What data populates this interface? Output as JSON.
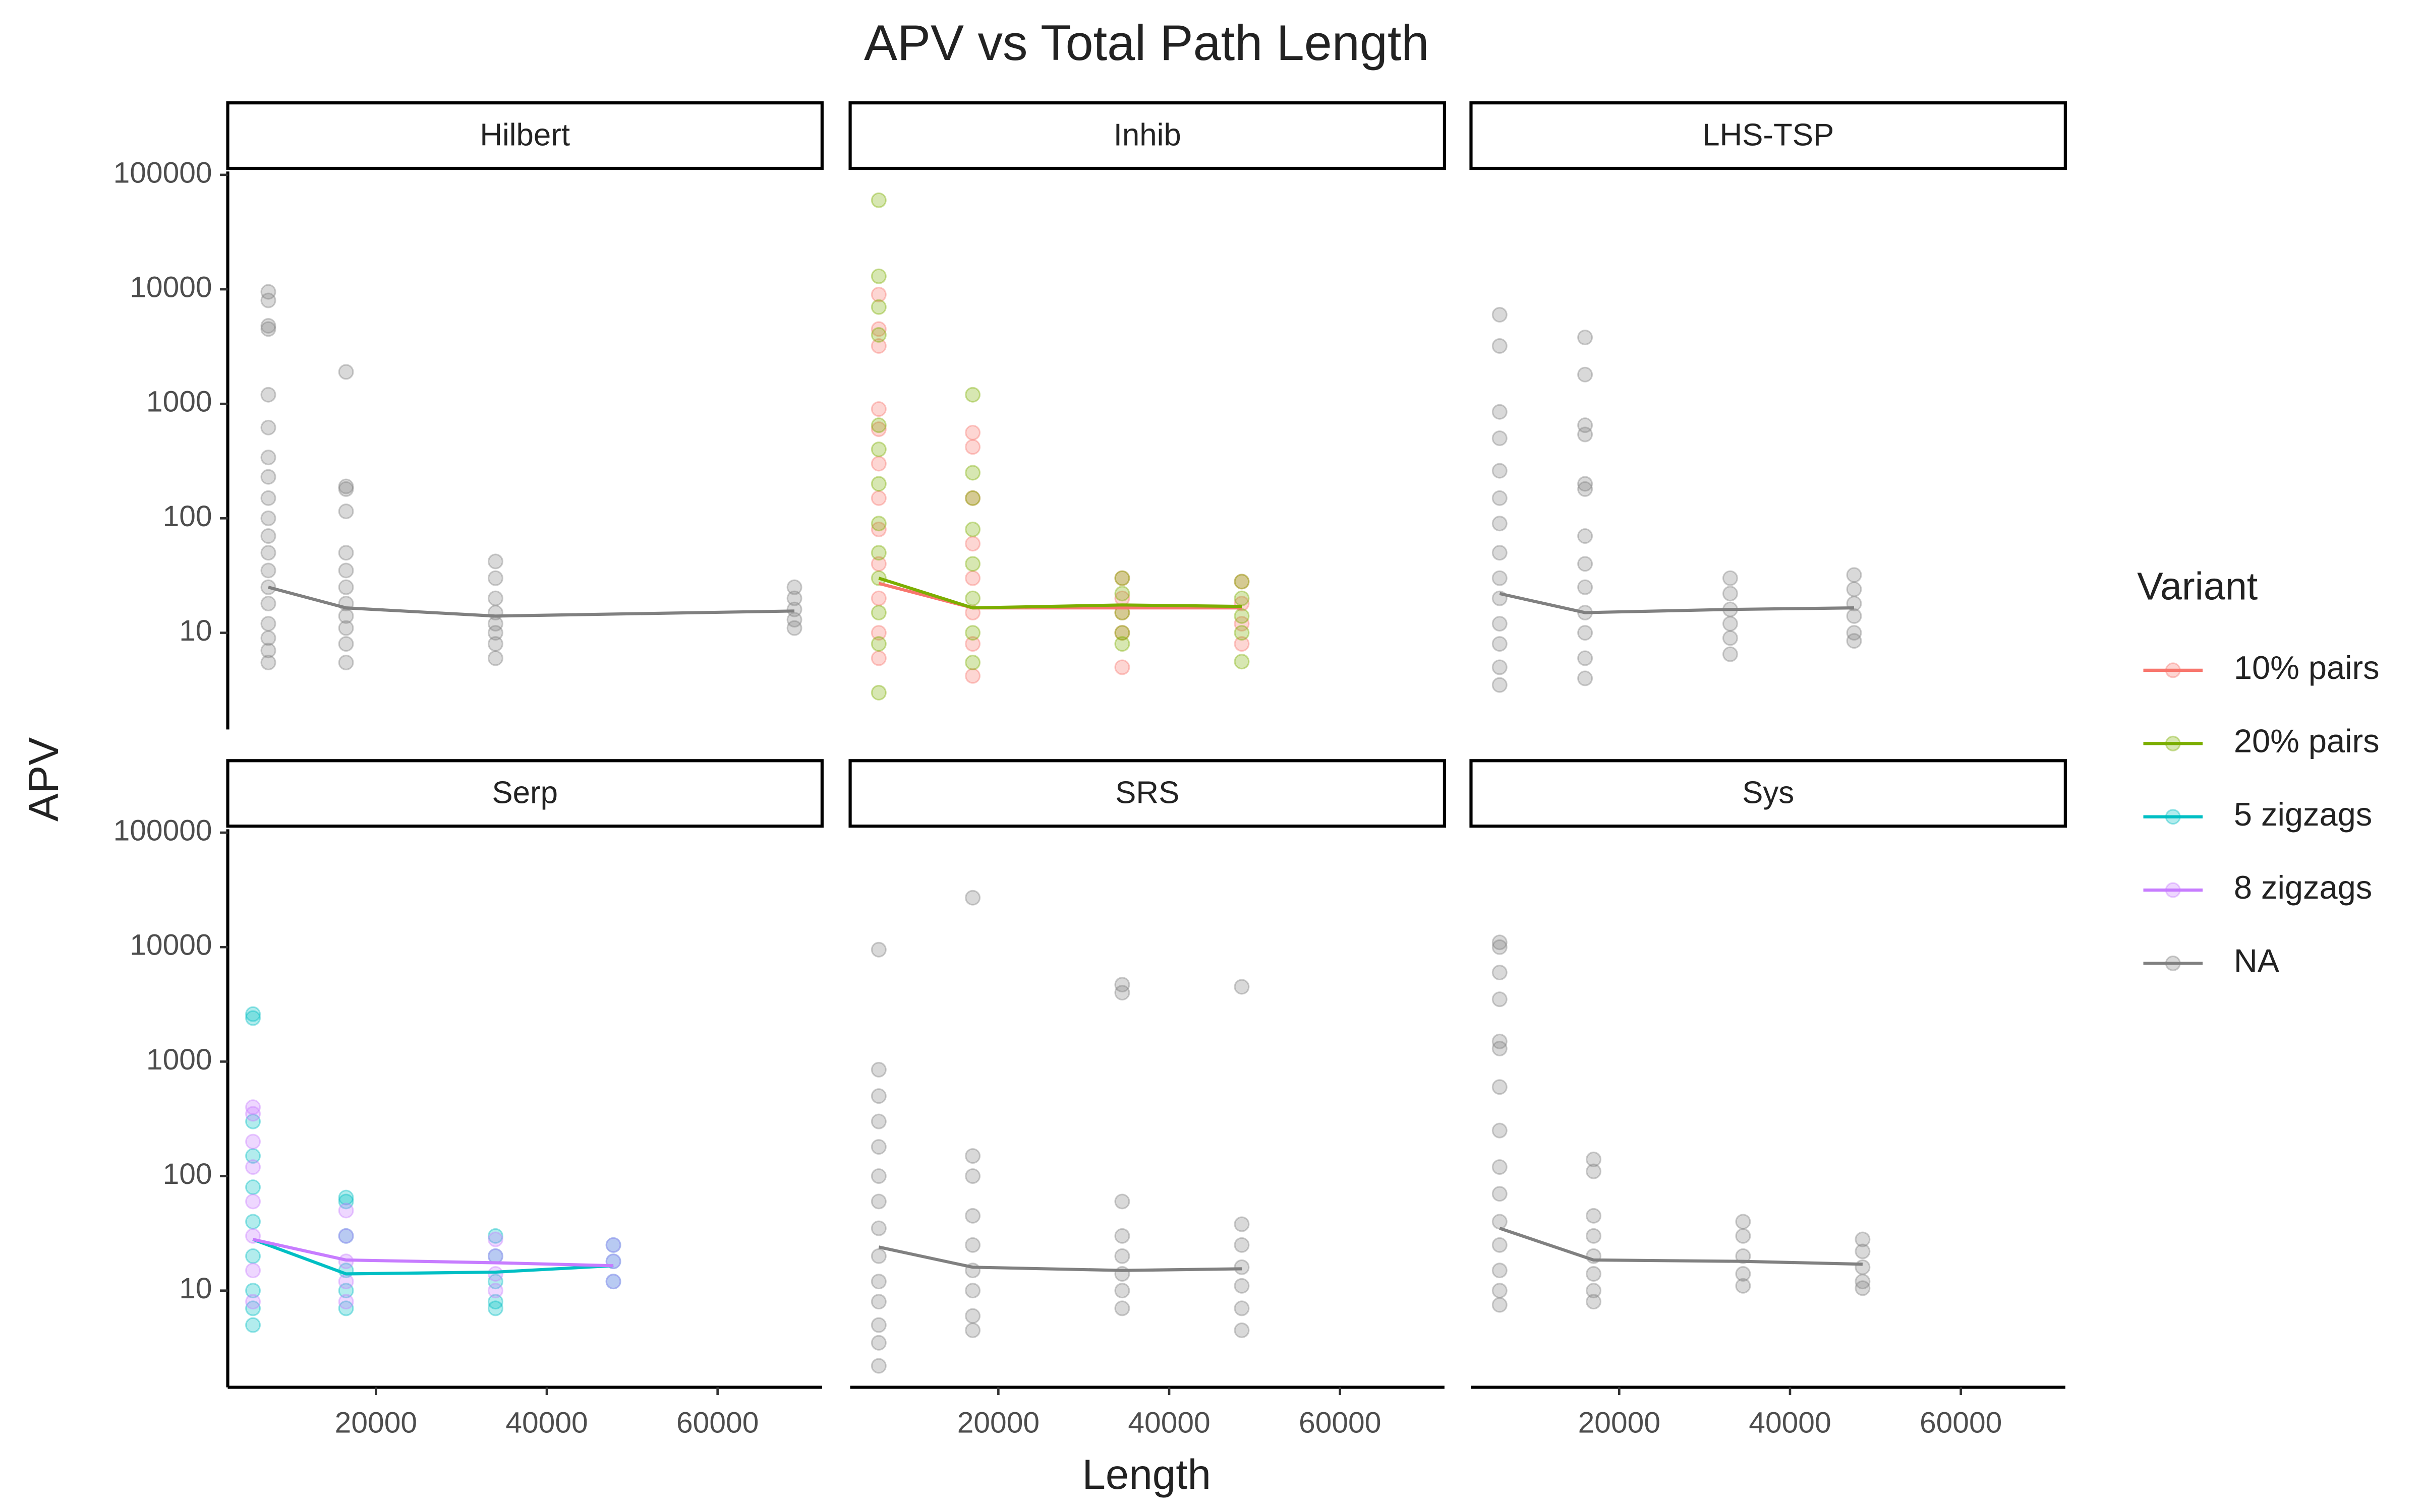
{
  "chart_data": {
    "type": "scatter",
    "title": "APV vs Total Path Length",
    "x_label": "Length",
    "y_label": "APV",
    "legend_title": "Variant",
    "log_y": true,
    "xlim": [
      2648,
      72237
    ],
    "ylim": [
      1.43,
      107000
    ],
    "xticks": [
      20000,
      40000,
      60000
    ],
    "yticks": [
      10,
      100,
      1000,
      10000,
      100000
    ],
    "series": [
      {
        "name": "10% pairs",
        "color": "#F8766D"
      },
      {
        "name": "20% pairs",
        "color": "#7CAE00"
      },
      {
        "name": "5 zigzags",
        "color": "#00BFC4"
      },
      {
        "name": "8 zigzags",
        "color": "#C77CFF"
      },
      {
        "name": "NA",
        "color": "#808080"
      }
    ],
    "panels": [
      {
        "name": "Hilbert",
        "series": [
          {
            "variant": 4,
            "x": [
              7400,
              7400,
              7400,
              7400,
              7400,
              7400,
              7400,
              7400,
              7400,
              7400,
              7400,
              7400,
              7400,
              7400,
              7400,
              7400,
              7400,
              7400,
              7400,
              16500,
              16500,
              16500,
              16500,
              16500,
              16500,
              16500,
              16500,
              16500,
              16500,
              16500,
              16500,
              34000,
              34000,
              34000,
              34000,
              34000,
              34000,
              34000,
              34000,
              69000,
              69000,
              69000,
              69000,
              69000
            ],
            "values": [
              9500,
              8000,
              4800,
              4500,
              1200,
              620,
              340,
              230,
              150,
              100,
              70,
              50,
              35,
              25,
              18,
              12,
              9,
              7,
              5.5,
              1900,
              190,
              180,
              115,
              50,
              35,
              25,
              18,
              14,
              11,
              8,
              5.5,
              42,
              30,
              20,
              15,
              12,
              10,
              8,
              6,
              25,
              20,
              16,
              13,
              11
            ],
            "mean_x": [
              7400,
              16500,
              34000,
              69000
            ],
            "mean_values": [
              25,
              16.5,
              14,
              15.5
            ]
          }
        ]
      },
      {
        "name": "Inhib",
        "series": [
          {
            "variant": 0,
            "x": [
              6000,
              6000,
              6000,
              6000,
              6000,
              6000,
              6000,
              6000,
              6000,
              6000,
              6000,
              6000,
              17000,
              17000,
              17000,
              17000,
              17000,
              17000,
              17000,
              17000,
              34500,
              34500,
              34500,
              34500,
              34500,
              48500,
              48500,
              48500,
              48500
            ],
            "values": [
              9000,
              4500,
              3200,
              900,
              600,
              300,
              150,
              80,
              40,
              20,
              10,
              6,
              560,
              420,
              150,
              60,
              30,
              15,
              8,
              4.2,
              30,
              20,
              15,
              10,
              5,
              28,
              18,
              12,
              8
            ],
            "mean_x": [
              6000,
              17000,
              34500,
              48500
            ],
            "mean_values": [
              27,
              16.5,
              16.5,
              16.5
            ]
          },
          {
            "variant": 1,
            "x": [
              6000,
              6000,
              6000,
              6000,
              6000,
              6000,
              6000,
              6000,
              6000,
              6000,
              6000,
              6000,
              6000,
              17000,
              17000,
              17000,
              17000,
              17000,
              17000,
              17000,
              17000,
              34500,
              34500,
              34500,
              34500,
              34500,
              48500,
              48500,
              48500,
              48500,
              48500
            ],
            "values": [
              60000,
              13000,
              7000,
              4000,
              650,
              400,
              200,
              90,
              50,
              30,
              15,
              8,
              3,
              1200,
              250,
              150,
              80,
              40,
              20,
              10,
              5.5,
              30,
              22,
              15,
              10,
              8,
              28,
              20,
              14,
              10,
              5.6
            ],
            "mean_x": [
              6000,
              17000,
              34500,
              48500
            ],
            "mean_values": [
              30,
              16.5,
              17.5,
              17
            ]
          }
        ]
      },
      {
        "name": "LHS-TSP",
        "series": [
          {
            "variant": 4,
            "x": [
              6000,
              6000,
              6000,
              6000,
              6000,
              6000,
              6000,
              6000,
              6000,
              6000,
              6000,
              6000,
              6000,
              6000,
              16000,
              16000,
              16000,
              16000,
              16000,
              16000,
              16000,
              16000,
              16000,
              16000,
              16000,
              16000,
              16000,
              33000,
              33000,
              33000,
              33000,
              33000,
              33000,
              47500,
              47500,
              47500,
              47500,
              47500,
              47500
            ],
            "values": [
              6000,
              3200,
              850,
              500,
              260,
              150,
              90,
              50,
              30,
              20,
              12,
              8,
              5,
              3.5,
              3800,
              1800,
              650,
              540,
              200,
              180,
              70,
              40,
              25,
              15,
              10,
              6,
              4,
              30,
              22,
              16,
              12,
              9,
              6.5,
              32,
              24,
              18,
              14,
              10,
              8.5
            ],
            "mean_x": [
              6000,
              16000,
              33000,
              47500
            ],
            "mean_values": [
              22,
              15,
              16,
              16.5
            ]
          }
        ]
      },
      {
        "name": "Serp",
        "series": [
          {
            "variant": 2,
            "x": [
              5600,
              5600,
              5600,
              5600,
              5600,
              5600,
              5600,
              5600,
              5600,
              5600,
              16500,
              16500,
              16500,
              16500,
              16500,
              16500,
              34000,
              34000,
              34000,
              34000,
              34000,
              47800,
              47800,
              47800
            ],
            "values": [
              2600,
              2400,
              300,
              150,
              80,
              40,
              20,
              10,
              7,
              5,
              65,
              60,
              30,
              15,
              10,
              7,
              30,
              20,
              12,
              8,
              7,
              25,
              18,
              12
            ],
            "mean_x": [
              5600,
              16500,
              34000,
              47800
            ],
            "mean_values": [
              28,
              14,
              14.5,
              16.5
            ]
          },
          {
            "variant": 3,
            "x": [
              5600,
              5600,
              5600,
              5600,
              5600,
              5600,
              5600,
              5600,
              16500,
              16500,
              16500,
              16500,
              16500,
              34000,
              34000,
              34000,
              34000,
              47800,
              47800,
              47800
            ],
            "values": [
              400,
              350,
              200,
              120,
              60,
              30,
              15,
              8,
              50,
              30,
              18,
              12,
              8,
              28,
              20,
              14,
              10,
              25,
              18,
              12
            ],
            "mean_x": [
              5600,
              16500,
              34000,
              47800
            ],
            "mean_values": [
              28,
              18.5,
              17.5,
              16.5
            ]
          }
        ]
      },
      {
        "name": "SRS",
        "series": [
          {
            "variant": 4,
            "x": [
              6000,
              6000,
              6000,
              6000,
              6000,
              6000,
              6000,
              6000,
              6000,
              6000,
              6000,
              6000,
              6000,
              6000,
              17000,
              17000,
              17000,
              17000,
              17000,
              17000,
              17000,
              17000,
              17000,
              34500,
              34500,
              34500,
              34500,
              34500,
              34500,
              34500,
              34500,
              48500,
              48500,
              48500,
              48500,
              48500,
              48500,
              48500
            ],
            "values": [
              9500,
              850,
              500,
              300,
              180,
              100,
              60,
              35,
              20,
              12,
              8,
              5,
              3.5,
              2.2,
              27000,
              150,
              100,
              45,
              25,
              15,
              10,
              6,
              4.5,
              4700,
              4000,
              60,
              30,
              20,
              14,
              10,
              7,
              4500,
              38,
              25,
              16,
              11,
              7,
              4.5
            ],
            "mean_x": [
              6000,
              17000,
              34500,
              48500
            ],
            "mean_values": [
              24,
              16,
              15,
              15.5
            ]
          }
        ]
      },
      {
        "name": "Sys",
        "series": [
          {
            "variant": 4,
            "x": [
              6000,
              6000,
              6000,
              6000,
              6000,
              6000,
              6000,
              6000,
              6000,
              6000,
              6000,
              6000,
              6000,
              6000,
              6000,
              17000,
              17000,
              17000,
              17000,
              17000,
              17000,
              17000,
              17000,
              34500,
              34500,
              34500,
              34500,
              34500,
              48500,
              48500,
              48500,
              48500,
              48500
            ],
            "values": [
              11000,
              10000,
              6000,
              3500,
              1500,
              1300,
              600,
              250,
              120,
              70,
              40,
              25,
              15,
              10,
              7.5,
              140,
              110,
              45,
              30,
              20,
              14,
              10,
              8,
              40,
              30,
              20,
              14,
              11,
              28,
              22,
              16,
              12,
              10.5
            ],
            "mean_x": [
              6000,
              17000,
              34500,
              48500
            ],
            "mean_values": [
              35,
              18.5,
              18,
              17
            ]
          }
        ]
      }
    ]
  }
}
